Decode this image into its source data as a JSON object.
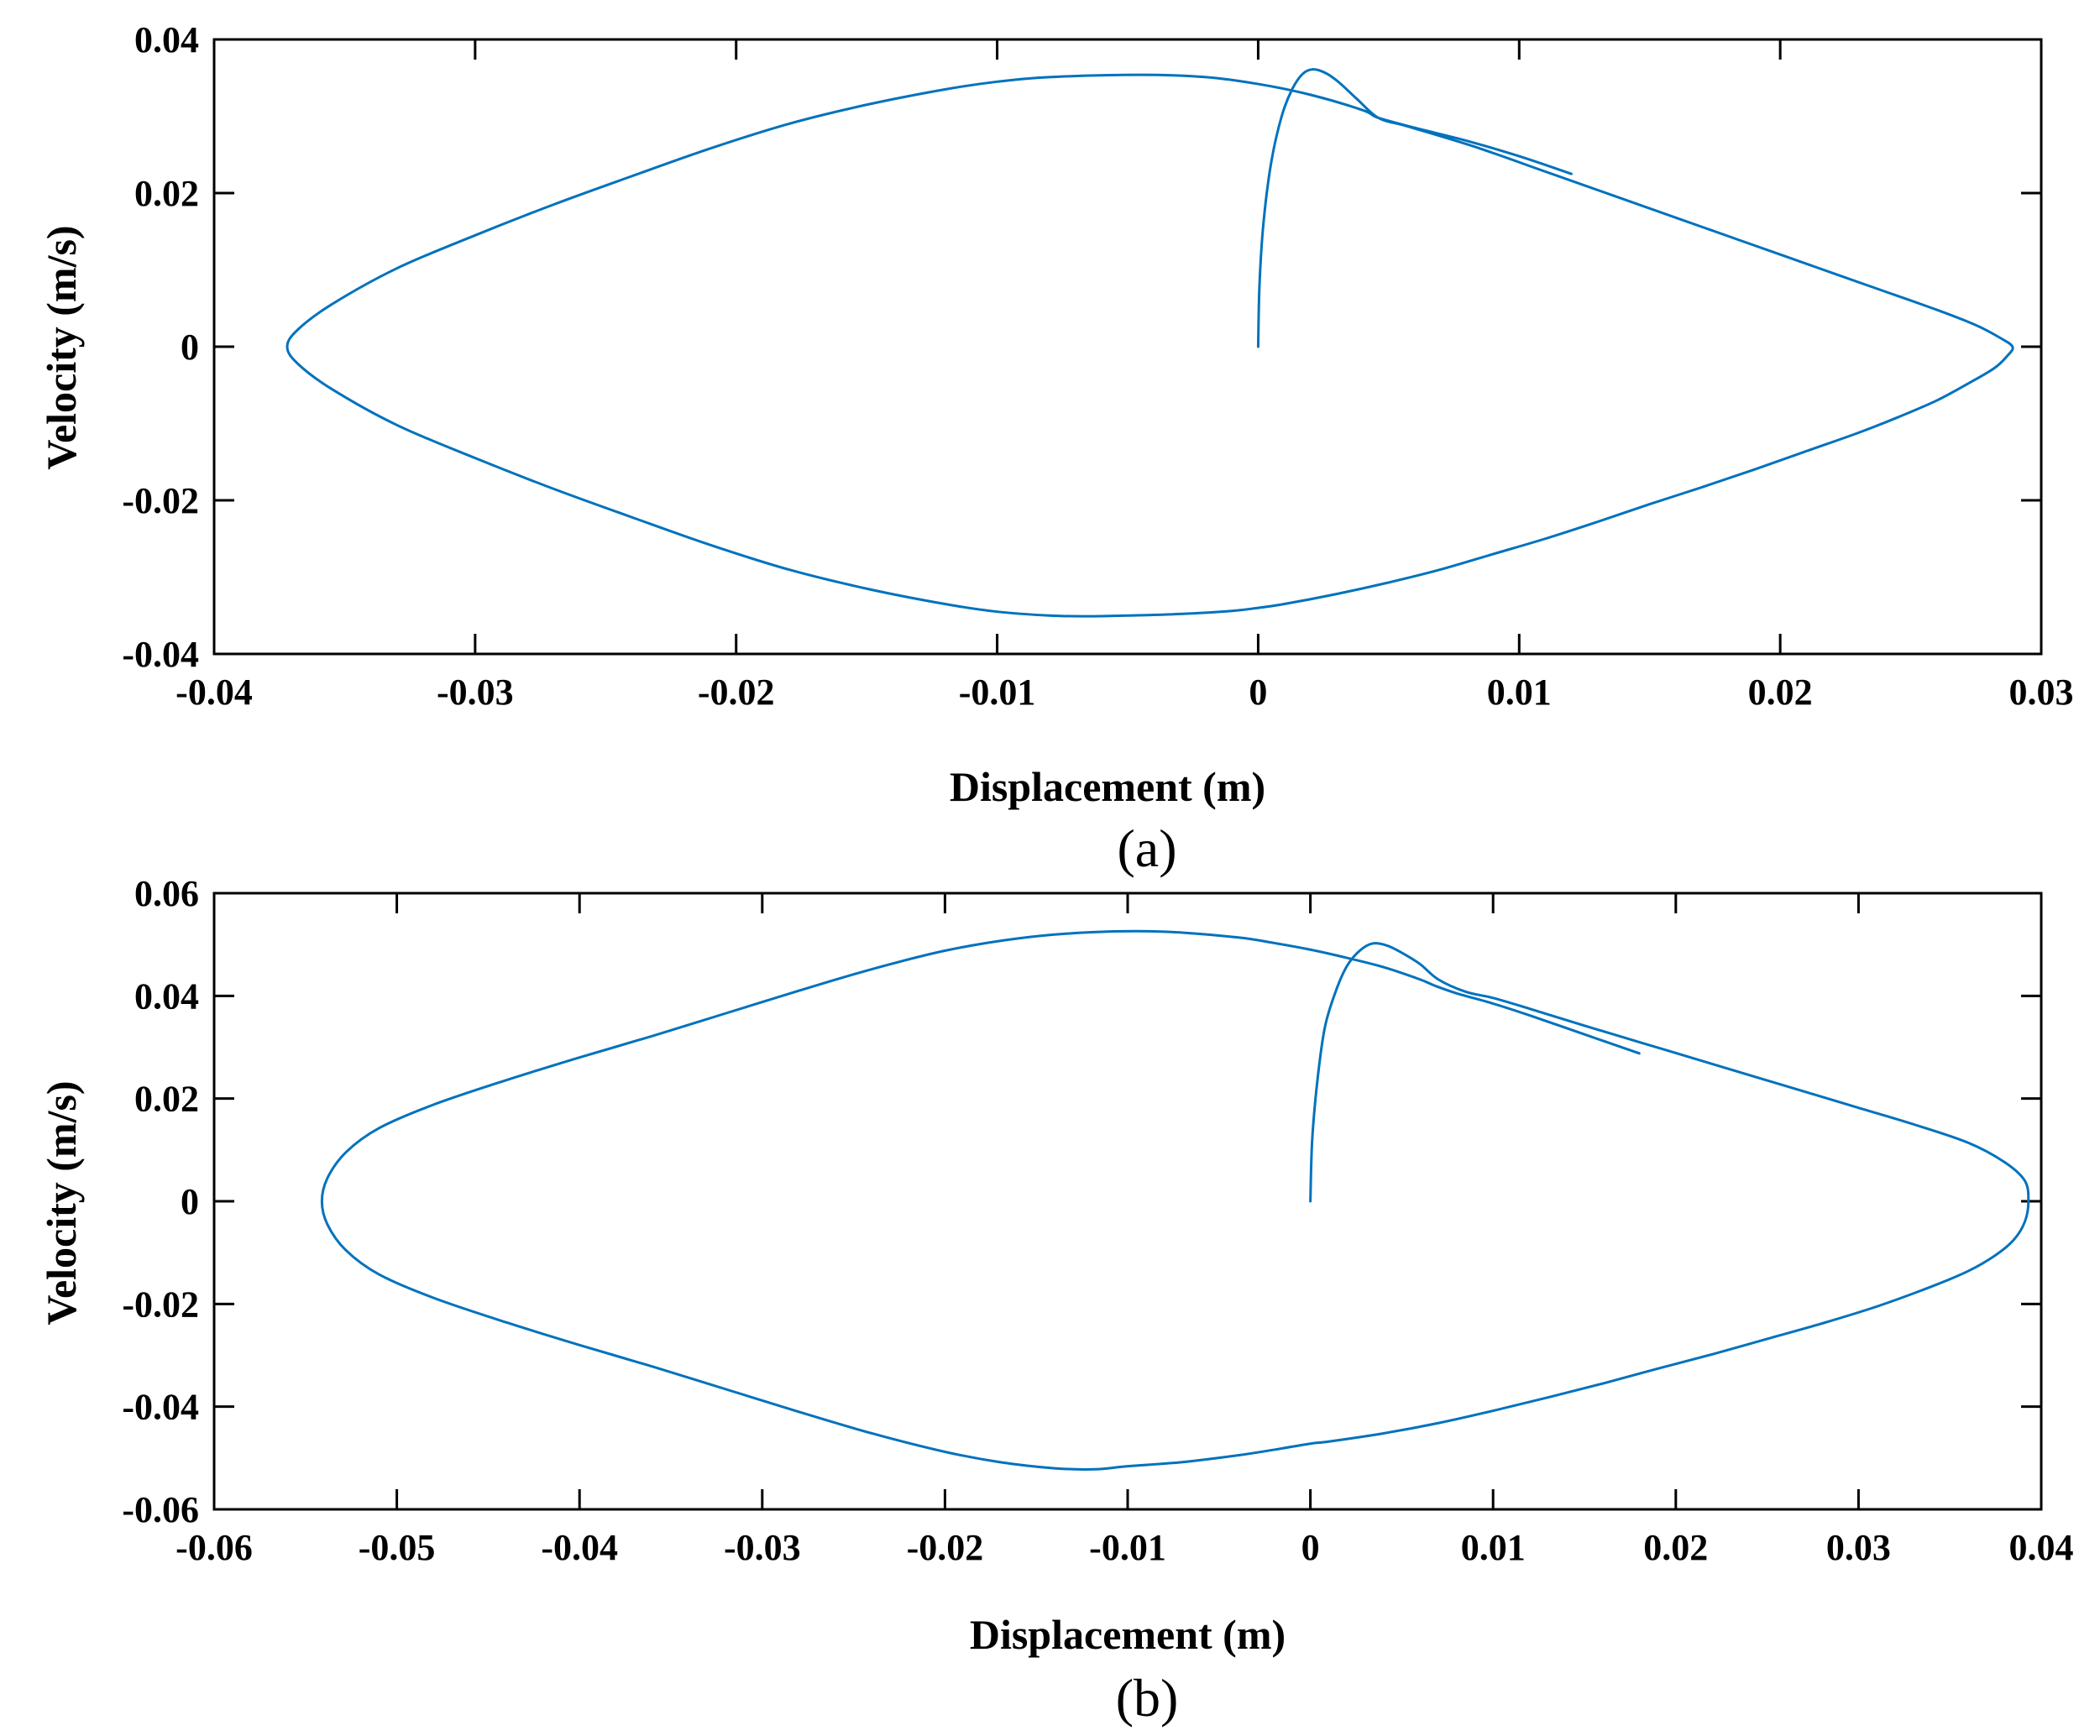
{
  "chart_data": [
    {
      "type": "line",
      "panel_label": "(a)",
      "title": "",
      "xlabel": "Displacement (m)",
      "ylabel": "Velocity (m/s)",
      "xlim": [
        -0.04,
        0.03
      ],
      "ylim": [
        -0.04,
        0.04
      ],
      "xticks": [
        -0.04,
        -0.03,
        -0.02,
        -0.01,
        0,
        0.01,
        0.02,
        0.03
      ],
      "xtick_labels": [
        "-0.04",
        "-0.03",
        "-0.02",
        "-0.01",
        "0",
        "0.01",
        "0.02",
        "0.03"
      ],
      "yticks": [
        -0.04,
        -0.02,
        0,
        0.02,
        0.04
      ],
      "ytick_labels": [
        "-0.04",
        "-0.02",
        "0",
        "0.02",
        "0.04"
      ],
      "grid": false,
      "series": [
        {
          "color": "#0072BD",
          "x": [
            0.0,
            5e-05,
            0.0002,
            0.0005,
            0.0009,
            0.0013,
            0.0017,
            0.0021,
            0.0026,
            0.0031,
            0.0038,
            0.0046,
            0.0056,
            0.0068,
            0.0085,
            0.011,
            0.0135,
            0.016,
            0.0185,
            0.021,
            0.0235,
            0.026,
            0.0275,
            0.0284,
            0.0289,
            0.0287,
            0.0282,
            0.0272,
            0.026,
            0.0245,
            0.023,
            0.021,
            0.019,
            0.017,
            0.015,
            0.013,
            0.011,
            0.009,
            0.007,
            0.005,
            0.003,
            0.001,
            0.0,
            -0.001,
            -0.003,
            -0.005,
            -0.0065,
            -0.008,
            -0.01,
            -0.012,
            -0.015,
            -0.018,
            -0.021,
            -0.024,
            -0.027,
            -0.03,
            -0.033,
            -0.0355,
            -0.0368,
            -0.0372,
            -0.0368,
            -0.0355,
            -0.033,
            -0.03,
            -0.027,
            -0.024,
            -0.021,
            -0.018,
            -0.015,
            -0.012,
            -0.01,
            -0.008,
            -0.0045,
            -0.002,
            0.0,
            0.002,
            0.004,
            0.0046,
            0.006,
            0.008,
            0.01,
            0.012
          ],
          "y": [
            0.0,
            0.008,
            0.016,
            0.024,
            0.03,
            0.0335,
            0.0355,
            0.0361,
            0.0356,
            0.0344,
            0.0322,
            0.0298,
            0.0288,
            0.0276,
            0.0258,
            0.0228,
            0.0198,
            0.0168,
            0.0138,
            0.0108,
            0.0078,
            0.0048,
            0.0028,
            0.0012,
            0.0,
            -0.0012,
            -0.0028,
            -0.0048,
            -0.007,
            -0.0092,
            -0.0112,
            -0.0136,
            -0.016,
            -0.0183,
            -0.0205,
            -0.0228,
            -0.025,
            -0.027,
            -0.029,
            -0.0307,
            -0.0322,
            -0.0335,
            -0.034,
            -0.0344,
            -0.0348,
            -0.035,
            -0.0351,
            -0.035,
            -0.0345,
            -0.0335,
            -0.0315,
            -0.029,
            -0.0258,
            -0.0222,
            -0.0185,
            -0.0145,
            -0.0102,
            -0.0055,
            -0.0022,
            0.0,
            0.0022,
            0.0055,
            0.0102,
            0.0145,
            0.0185,
            0.0222,
            0.0258,
            0.029,
            0.0315,
            0.0335,
            0.0345,
            0.0351,
            0.0354,
            0.0351,
            0.0342,
            0.0328,
            0.0308,
            0.0298,
            0.0285,
            0.0268,
            0.0248,
            0.0225
          ]
        }
      ]
    },
    {
      "type": "line",
      "panel_label": "(b)",
      "title": "",
      "xlabel": "Displacement (m)",
      "ylabel": "Velocity (m/s)",
      "xlim": [
        -0.06,
        0.04
      ],
      "ylim": [
        -0.06,
        0.06
      ],
      "xticks": [
        -0.06,
        -0.05,
        -0.04,
        -0.03,
        -0.02,
        -0.01,
        0,
        0.01,
        0.02,
        0.03,
        0.04
      ],
      "xtick_labels": [
        "-0.06",
        "-0.05",
        "-0.04",
        "-0.03",
        "-0.02",
        "-0.01",
        "0",
        "0.01",
        "0.02",
        "0.03",
        "0.04"
      ],
      "yticks": [
        -0.06,
        -0.04,
        -0.02,
        0,
        0.02,
        0.04,
        0.06
      ],
      "ytick_labels": [
        "-0.06",
        "-0.04",
        "-0.02",
        "0",
        "0.02",
        "0.04",
        "0.06"
      ],
      "grid": false,
      "series": [
        {
          "color": "#0072BD",
          "x": [
            0.0,
            0.0001,
            0.0004,
            0.0008,
            0.0014,
            0.002,
            0.0027,
            0.0034,
            0.0042,
            0.005,
            0.006,
            0.007,
            0.0085,
            0.01,
            0.012,
            0.015,
            0.018,
            0.021,
            0.024,
            0.027,
            0.03,
            0.033,
            0.036,
            0.038,
            0.0391,
            0.0393,
            0.0391,
            0.0385,
            0.0375,
            0.036,
            0.034,
            0.031,
            0.028,
            0.025,
            0.022,
            0.019,
            0.016,
            0.013,
            0.01,
            0.007,
            0.004,
            0.001,
            0.0,
            -0.002,
            -0.004,
            -0.007,
            -0.01,
            -0.0118,
            -0.014,
            -0.017,
            -0.02,
            -0.024,
            -0.028,
            -0.032,
            -0.036,
            -0.04,
            -0.044,
            -0.048,
            -0.051,
            -0.0528,
            -0.0538,
            -0.0541,
            -0.0538,
            -0.0528,
            -0.051,
            -0.048,
            -0.044,
            -0.04,
            -0.036,
            -0.032,
            -0.028,
            -0.024,
            -0.02,
            -0.016,
            -0.012,
            -0.008,
            -0.004,
            -0.002,
            0.0,
            0.002,
            0.004,
            0.006,
            0.0068,
            0.008,
            0.01,
            0.012,
            0.015,
            0.018
          ],
          "y": [
            0.0,
            0.012,
            0.024,
            0.034,
            0.041,
            0.0458,
            0.0488,
            0.0502,
            0.0498,
            0.0484,
            0.0462,
            0.0432,
            0.0408,
            0.0396,
            0.0375,
            0.0342,
            0.031,
            0.0278,
            0.0246,
            0.0214,
            0.0182,
            0.015,
            0.0114,
            0.0076,
            0.004,
            0.0,
            -0.004,
            -0.0075,
            -0.0105,
            -0.0136,
            -0.0166,
            -0.0205,
            -0.0238,
            -0.0268,
            -0.0298,
            -0.0326,
            -0.0355,
            -0.0382,
            -0.0408,
            -0.0432,
            -0.0452,
            -0.0468,
            -0.0472,
            -0.0484,
            -0.0495,
            -0.0508,
            -0.0516,
            -0.0522,
            -0.052,
            -0.0508,
            -0.0488,
            -0.0452,
            -0.041,
            -0.0366,
            -0.0322,
            -0.028,
            -0.0236,
            -0.0188,
            -0.0142,
            -0.0095,
            -0.0045,
            0.0,
            0.0045,
            0.0095,
            0.0142,
            0.0188,
            0.0236,
            0.028,
            0.0322,
            0.0366,
            0.041,
            0.0452,
            0.0488,
            0.0512,
            0.0524,
            0.0525,
            0.0514,
            0.0503,
            0.049,
            0.0474,
            0.0456,
            0.0432,
            0.042,
            0.0405,
            0.0385,
            0.0362,
            0.0325,
            0.0288
          ]
        }
      ]
    }
  ]
}
